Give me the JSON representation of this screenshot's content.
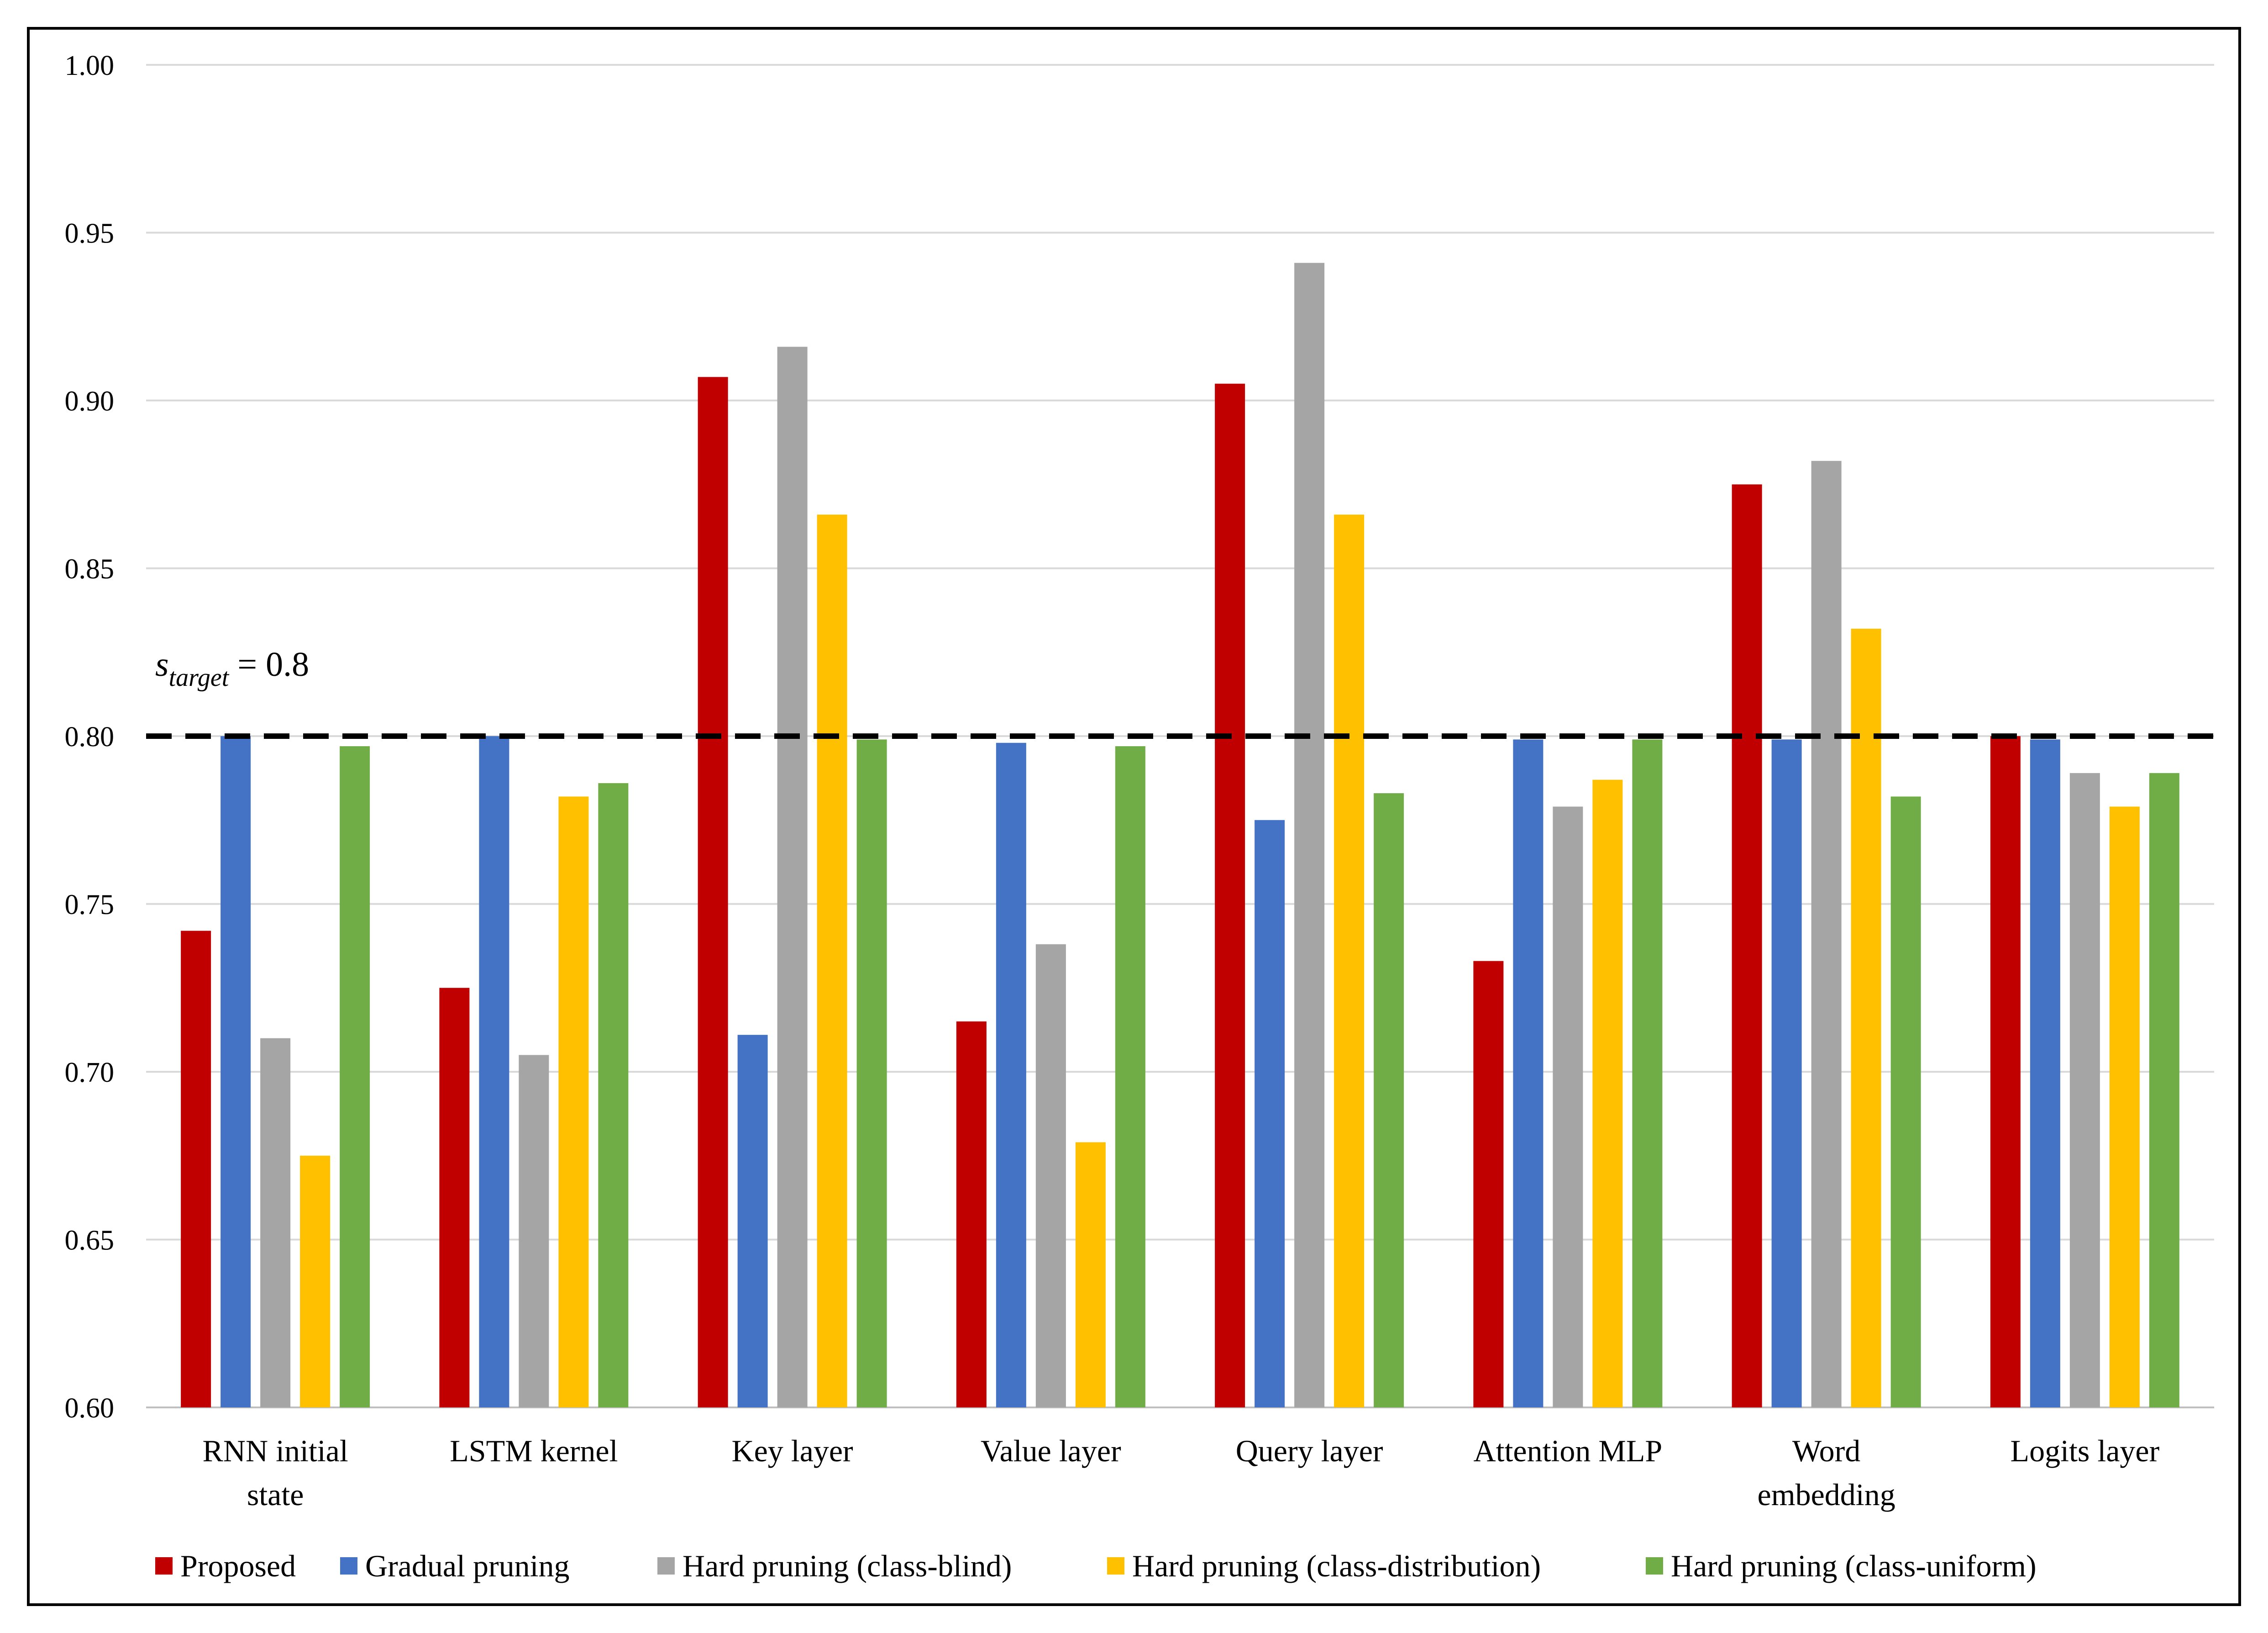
{
  "chart_data": {
    "type": "bar",
    "title": "",
    "xlabel": "",
    "ylabel": "",
    "ylim": [
      0.6,
      1.0
    ],
    "y_ticks": [
      "0.60",
      "0.65",
      "0.70",
      "0.75",
      "0.80",
      "0.85",
      "0.90",
      "0.95",
      "1.00"
    ],
    "grid": true,
    "legend_position": "bottom",
    "categories": [
      [
        "RNN initial",
        "state"
      ],
      [
        "LSTM kernel"
      ],
      [
        "Key layer"
      ],
      [
        "Value layer"
      ],
      [
        "Query layer"
      ],
      [
        "Attention MLP"
      ],
      [
        "Word",
        "embedding"
      ],
      [
        "Logits layer"
      ]
    ],
    "series": [
      {
        "name": "Proposed",
        "color": "#c00000",
        "values": [
          0.742,
          0.725,
          0.907,
          0.715,
          0.905,
          0.733,
          0.875,
          0.8
        ]
      },
      {
        "name": "Gradual pruning",
        "color": "#4472c4",
        "values": [
          0.8,
          0.8,
          0.711,
          0.798,
          0.775,
          0.799,
          0.799,
          0.799
        ]
      },
      {
        "name": "Hard pruning (class-blind)",
        "color": "#a5a5a5",
        "values": [
          0.71,
          0.705,
          0.916,
          0.738,
          0.941,
          0.779,
          0.882,
          0.789
        ]
      },
      {
        "name": "Hard pruning (class-distribution)",
        "color": "#ffc000",
        "values": [
          0.675,
          0.782,
          0.866,
          0.679,
          0.866,
          0.787,
          0.832,
          0.779
        ]
      },
      {
        "name": "Hard pruning (class-uniform)",
        "color": "#70ad47",
        "values": [
          0.797,
          0.786,
          0.799,
          0.797,
          0.783,
          0.799,
          0.782,
          0.789
        ]
      }
    ],
    "reference_line": {
      "value": 0.8,
      "label_var": "s",
      "label_sub": "target",
      "label_rest": " = 0.8",
      "style": "dashed",
      "color": "#000000"
    }
  }
}
